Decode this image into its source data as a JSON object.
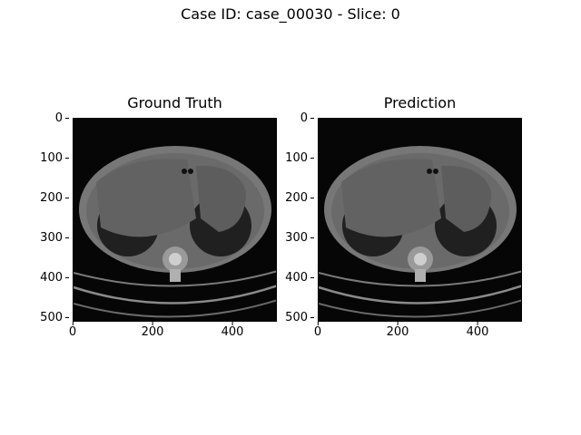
{
  "figure": {
    "suptitle": "Case ID: case_00030 - Slice: 0"
  },
  "panels": [
    {
      "title": "Ground Truth",
      "y_ticks": [
        "0",
        "100",
        "200",
        "300",
        "400",
        "500"
      ],
      "x_ticks": [
        "0",
        "200",
        "400"
      ]
    },
    {
      "title": "Prediction",
      "y_ticks": [
        "0",
        "100",
        "200",
        "300",
        "400",
        "500"
      ],
      "x_ticks": [
        "0",
        "200",
        "400"
      ]
    }
  ],
  "axis": {
    "range": [
      0,
      512
    ]
  },
  "image": {
    "colormap": "gray",
    "content": "CT axial slice"
  }
}
